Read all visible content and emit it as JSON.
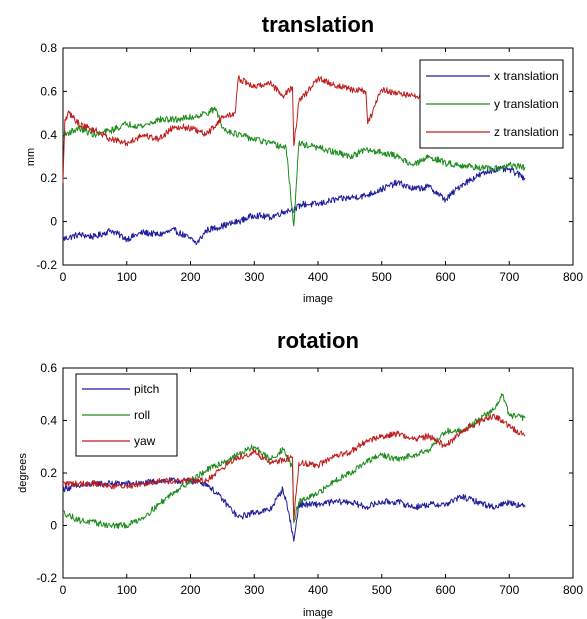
{
  "chart_data": [
    {
      "type": "line",
      "title": "translation",
      "xlabel": "image",
      "ylabel": "mm",
      "xlim": [
        0,
        800
      ],
      "ylim": [
        -0.2,
        0.8
      ],
      "xticks": [
        0,
        100,
        200,
        300,
        400,
        500,
        600,
        700,
        800
      ],
      "yticks": [
        -0.2,
        0,
        0.2,
        0.4,
        0.6,
        0.8
      ],
      "ytick_labels": [
        "-0.2",
        "0",
        "0.2",
        "0.4",
        "0.6",
        "0.8"
      ],
      "grid": false,
      "legend": "top-right",
      "series": [
        {
          "name": "x translation",
          "color": "#1f1f9e",
          "x": [
            0,
            25,
            50,
            75,
            100,
            125,
            150,
            175,
            200,
            210,
            225,
            250,
            275,
            300,
            325,
            350,
            365,
            375,
            400,
            425,
            450,
            475,
            500,
            525,
            550,
            575,
            600,
            625,
            650,
            675,
            700,
            725
          ],
          "y": [
            -0.08,
            -0.06,
            -0.07,
            -0.04,
            -0.08,
            -0.05,
            -0.06,
            -0.04,
            -0.08,
            -0.1,
            -0.04,
            -0.02,
            0.0,
            0.03,
            0.02,
            0.05,
            0.06,
            0.08,
            0.08,
            0.1,
            0.11,
            0.12,
            0.15,
            0.18,
            0.15,
            0.16,
            0.1,
            0.17,
            0.21,
            0.24,
            0.24,
            0.2
          ]
        },
        {
          "name": "y translation",
          "color": "#1e8c1e",
          "x": [
            0,
            25,
            50,
            75,
            100,
            125,
            150,
            175,
            200,
            225,
            240,
            250,
            275,
            300,
            325,
            350,
            362,
            370,
            400,
            425,
            450,
            475,
            500,
            525,
            550,
            575,
            600,
            625,
            650,
            675,
            700,
            725
          ],
          "y": [
            0.4,
            0.43,
            0.4,
            0.42,
            0.45,
            0.44,
            0.47,
            0.47,
            0.48,
            0.5,
            0.52,
            0.43,
            0.4,
            0.38,
            0.36,
            0.34,
            -0.02,
            0.36,
            0.34,
            0.32,
            0.3,
            0.33,
            0.32,
            0.3,
            0.26,
            0.3,
            0.27,
            0.26,
            0.25,
            0.24,
            0.26,
            0.25
          ]
        },
        {
          "name": "z translation",
          "color": "#c01e1e",
          "x": [
            0,
            3,
            10,
            25,
            50,
            75,
            100,
            125,
            150,
            175,
            200,
            225,
            250,
            270,
            275,
            300,
            325,
            345,
            360,
            362,
            370,
            400,
            425,
            450,
            475,
            478,
            500,
            525,
            550,
            575,
            600
          ],
          "y": [
            0.18,
            0.47,
            0.5,
            0.45,
            0.42,
            0.38,
            0.36,
            0.4,
            0.38,
            0.44,
            0.43,
            0.4,
            0.48,
            0.5,
            0.66,
            0.62,
            0.64,
            0.58,
            0.62,
            0.35,
            0.55,
            0.66,
            0.63,
            0.61,
            0.6,
            0.45,
            0.61,
            0.59,
            0.58,
            0.57,
            0.58
          ]
        }
      ]
    },
    {
      "type": "line",
      "title": "rotation",
      "xlabel": "image",
      "ylabel": "degrees",
      "xlim": [
        0,
        800
      ],
      "ylim": [
        -0.2,
        0.6
      ],
      "xticks": [
        0,
        100,
        200,
        300,
        400,
        500,
        600,
        700,
        800
      ],
      "yticks": [
        -0.2,
        0,
        0.2,
        0.4,
        0.6
      ],
      "ytick_labels": [
        "-0.2",
        "0",
        "0.2",
        "0.4",
        "0.6"
      ],
      "grid": false,
      "legend": "top-left",
      "series": [
        {
          "name": "pitch",
          "color": "#1f1f9e",
          "x": [
            0,
            25,
            50,
            75,
            100,
            125,
            150,
            175,
            200,
            225,
            250,
            275,
            300,
            325,
            345,
            355,
            362,
            370,
            400,
            425,
            450,
            475,
            500,
            525,
            550,
            575,
            600,
            625,
            650,
            675,
            700,
            725
          ],
          "y": [
            0.14,
            0.15,
            0.16,
            0.16,
            0.16,
            0.16,
            0.17,
            0.17,
            0.17,
            0.16,
            0.1,
            0.03,
            0.05,
            0.06,
            0.14,
            0.04,
            -0.06,
            0.08,
            0.08,
            0.09,
            0.09,
            0.07,
            0.09,
            0.09,
            0.07,
            0.08,
            0.08,
            0.11,
            0.09,
            0.07,
            0.09,
            0.07
          ]
        },
        {
          "name": "roll",
          "color": "#1e8c1e",
          "x": [
            0,
            25,
            50,
            75,
            100,
            125,
            150,
            175,
            200,
            225,
            250,
            275,
            300,
            325,
            345,
            360,
            362,
            370,
            400,
            425,
            450,
            475,
            500,
            525,
            550,
            575,
            600,
            625,
            650,
            675,
            690,
            700,
            725
          ],
          "y": [
            0.05,
            0.02,
            0.01,
            0.0,
            0.0,
            0.03,
            0.08,
            0.13,
            0.17,
            0.21,
            0.24,
            0.27,
            0.3,
            0.25,
            0.29,
            0.22,
            0.01,
            0.09,
            0.12,
            0.17,
            0.2,
            0.24,
            0.27,
            0.25,
            0.27,
            0.29,
            0.36,
            0.36,
            0.4,
            0.44,
            0.5,
            0.42,
            0.41
          ]
        },
        {
          "name": "yaw",
          "color": "#c01e1e",
          "x": [
            0,
            25,
            50,
            75,
            100,
            125,
            150,
            175,
            200,
            225,
            250,
            275,
            300,
            325,
            345,
            360,
            362,
            370,
            400,
            425,
            450,
            475,
            500,
            525,
            550,
            575,
            600,
            625,
            650,
            675,
            700,
            725
          ],
          "y": [
            0.16,
            0.16,
            0.16,
            0.15,
            0.15,
            0.16,
            0.17,
            0.17,
            0.17,
            0.17,
            0.22,
            0.26,
            0.28,
            0.24,
            0.25,
            0.26,
            0.02,
            0.24,
            0.23,
            0.26,
            0.28,
            0.32,
            0.34,
            0.35,
            0.33,
            0.34,
            0.3,
            0.36,
            0.39,
            0.42,
            0.38,
            0.34
          ]
        }
      ]
    }
  ]
}
